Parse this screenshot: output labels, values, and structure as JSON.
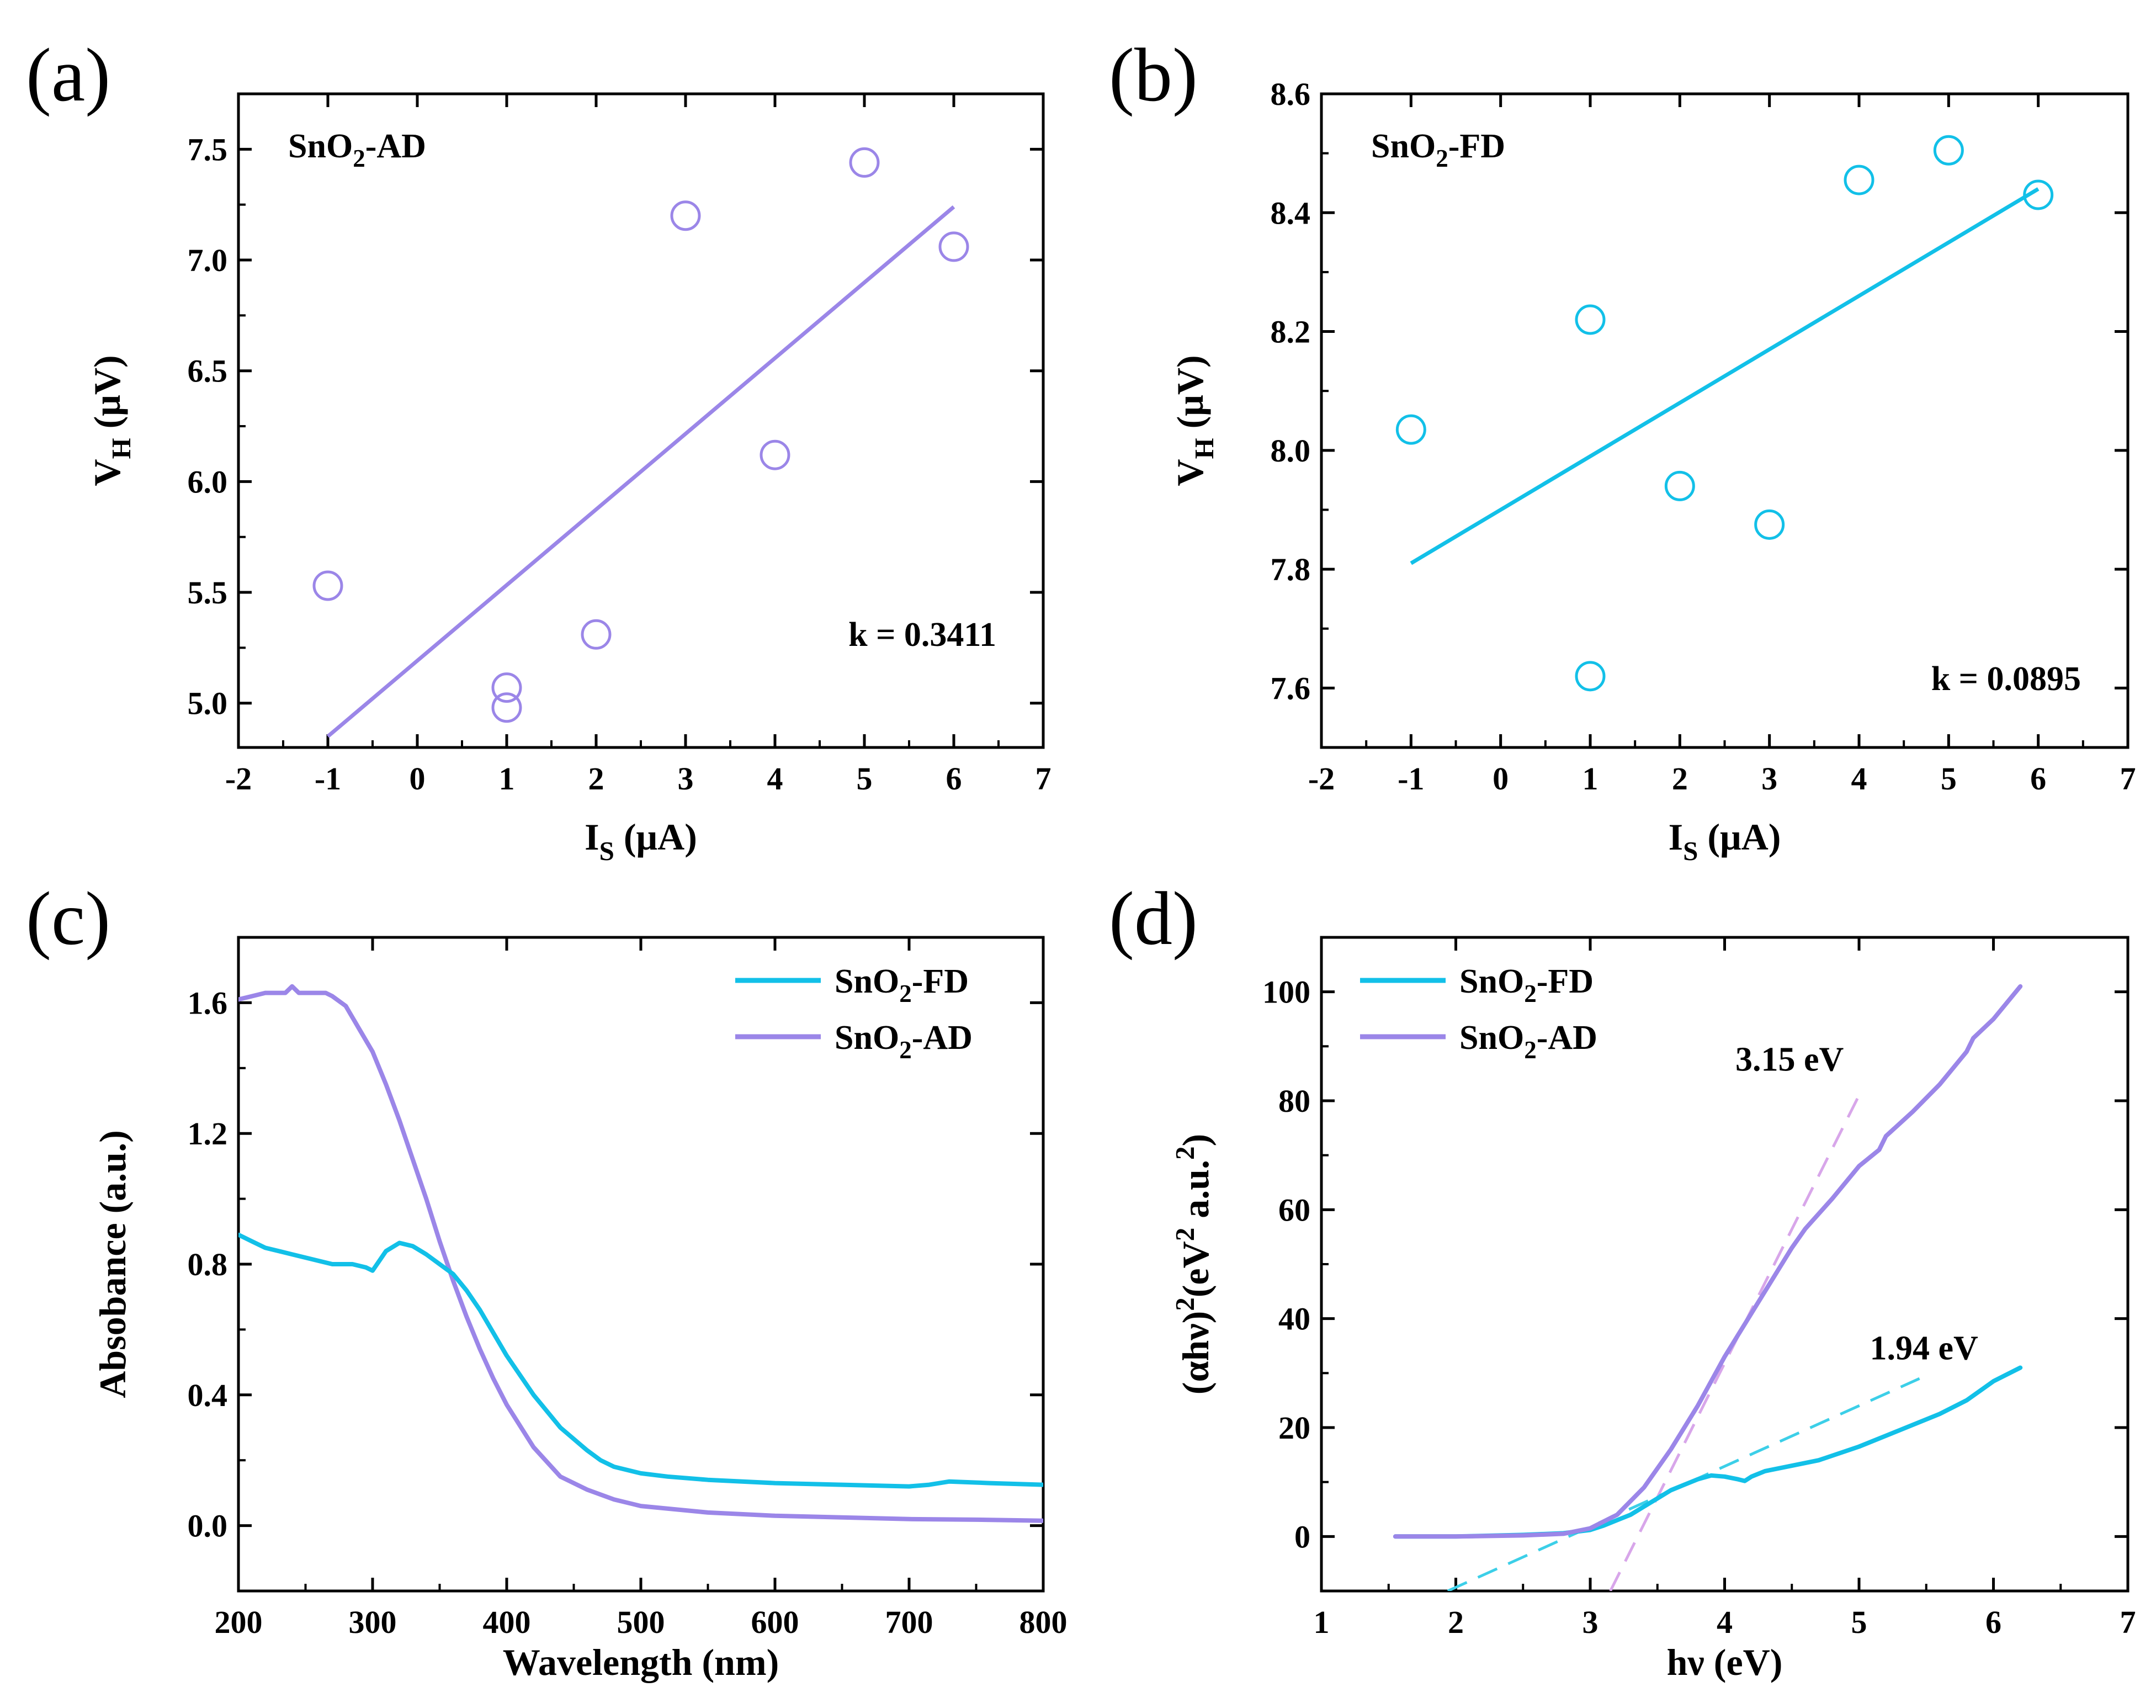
{
  "colors": {
    "ad": "#9b86e8",
    "fd": "#12c0e8",
    "ad_dash": "#d8a6ea",
    "fd_dash": "#3ccfe8"
  },
  "chart_data": [
    {
      "id": "a",
      "type": "scatter",
      "panel_label": "(a)",
      "title": "SnO2-AD",
      "sample": {
        "name": "SnO",
        "sub": "2",
        "rest": "-AD"
      },
      "xlabel": {
        "main": "I",
        "sub": "S",
        "rest": " (μA)"
      },
      "ylabel": {
        "main": "V",
        "sub": "H",
        "rest": " (μV)"
      },
      "xlim": [
        -2,
        7
      ],
      "ylim": [
        4.8,
        7.75
      ],
      "xticks": [
        "-2",
        "-1",
        "0",
        "1",
        "2",
        "3",
        "4",
        "5",
        "6",
        "7"
      ],
      "yticks": [
        "5.0",
        "5.5",
        "6.0",
        "6.5",
        "7.0",
        "7.5"
      ],
      "points": [
        [
          -1,
          5.53
        ],
        [
          1,
          5.07
        ],
        [
          1,
          4.98
        ],
        [
          2,
          5.31
        ],
        [
          3,
          7.2
        ],
        [
          4,
          6.12
        ],
        [
          5,
          7.44
        ],
        [
          6,
          7.06
        ]
      ],
      "fit": [
        [
          -1,
          4.85
        ],
        [
          6,
          7.24
        ]
      ],
      "annotation": "k = 0.3411",
      "color": "#9b86e8"
    },
    {
      "id": "b",
      "type": "scatter",
      "panel_label": "(b)",
      "title": "SnO2-FD",
      "sample": {
        "name": "SnO",
        "sub": "2",
        "rest": "-FD"
      },
      "xlabel": {
        "main": "I",
        "sub": "S",
        "rest": " (μA)"
      },
      "ylabel": {
        "main": "V",
        "sub": "H",
        "rest": " (μV)"
      },
      "xlim": [
        -2,
        7
      ],
      "ylim": [
        7.5,
        8.6
      ],
      "xticks": [
        "-2",
        "-1",
        "0",
        "1",
        "2",
        "3",
        "4",
        "5",
        "6",
        "7"
      ],
      "yticks": [
        "7.6",
        "7.8",
        "8.0",
        "8.2",
        "8.4",
        "8.6"
      ],
      "points": [
        [
          -1,
          8.035
        ],
        [
          1,
          8.22
        ],
        [
          1,
          7.62
        ],
        [
          2,
          7.94
        ],
        [
          3,
          7.875
        ],
        [
          4,
          8.455
        ],
        [
          5,
          8.505
        ],
        [
          6,
          8.43
        ]
      ],
      "fit": [
        [
          -1,
          7.81
        ],
        [
          6,
          8.44
        ]
      ],
      "annotation": "k = 0.0895",
      "color": "#12c0e8"
    },
    {
      "id": "c",
      "type": "line",
      "panel_label": "(c)",
      "xlabel": "Wavelength (nm)",
      "ylabel": "Absobance (a.u.)",
      "xlim": [
        200,
        800
      ],
      "ylim": [
        -0.2,
        1.8
      ],
      "xticks": [
        "200",
        "300",
        "400",
        "500",
        "600",
        "700",
        "800"
      ],
      "yticks": [
        "0.0",
        "0.4",
        "0.8",
        "1.2",
        "1.6"
      ],
      "series": [
        {
          "name": "SnO2-FD",
          "label": {
            "name": "SnO",
            "sub": "2",
            "rest": "-FD"
          },
          "color": "#12c0e8",
          "x": [
            200,
            210,
            220,
            240,
            260,
            270,
            285,
            295,
            300,
            310,
            320,
            330,
            340,
            350,
            360,
            370,
            380,
            400,
            420,
            440,
            460,
            470,
            480,
            500,
            520,
            550,
            600,
            650,
            700,
            715,
            730,
            760,
            800
          ],
          "y": [
            0.89,
            0.87,
            0.85,
            0.83,
            0.81,
            0.8,
            0.8,
            0.79,
            0.78,
            0.84,
            0.865,
            0.855,
            0.83,
            0.8,
            0.77,
            0.72,
            0.66,
            0.52,
            0.4,
            0.3,
            0.23,
            0.2,
            0.18,
            0.16,
            0.15,
            0.14,
            0.13,
            0.125,
            0.12,
            0.125,
            0.135,
            0.13,
            0.125
          ]
        },
        {
          "name": "SnO2-AD",
          "label": {
            "name": "SnO",
            "sub": "2",
            "rest": "-AD"
          },
          "color": "#9b86e8",
          "x": [
            200,
            210,
            220,
            235,
            240,
            245,
            255,
            265,
            270,
            280,
            290,
            300,
            310,
            320,
            330,
            340,
            350,
            360,
            370,
            380,
            390,
            400,
            420,
            440,
            460,
            480,
            500,
            550,
            600,
            650,
            700,
            750,
            800
          ],
          "y": [
            1.61,
            1.62,
            1.63,
            1.63,
            1.65,
            1.63,
            1.63,
            1.63,
            1.62,
            1.59,
            1.52,
            1.45,
            1.35,
            1.24,
            1.12,
            1.0,
            0.87,
            0.75,
            0.64,
            0.54,
            0.45,
            0.37,
            0.24,
            0.15,
            0.11,
            0.08,
            0.06,
            0.04,
            0.03,
            0.025,
            0.02,
            0.018,
            0.015
          ]
        }
      ]
    },
    {
      "id": "d",
      "type": "line",
      "panel_label": "(d)",
      "xlabel": "hν (eV)",
      "ylabel": {
        "pre": "(αhν)",
        "sup1": "2",
        "mid": "(eV",
        "sup2": "2",
        "mid2": " a.u.",
        "sup3": "2",
        "post": ")"
      },
      "xlim": [
        1,
        7
      ],
      "ylim": [
        -10,
        110
      ],
      "xticks": [
        "1",
        "2",
        "3",
        "4",
        "5",
        "6",
        "7"
      ],
      "yticks": [
        "0",
        "20",
        "40",
        "60",
        "80",
        "100"
      ],
      "series": [
        {
          "name": "SnO2-FD",
          "label": {
            "name": "SnO",
            "sub": "2",
            "rest": "-FD"
          },
          "color": "#12c0e8",
          "x": [
            1.55,
            2.0,
            2.5,
            2.8,
            3.0,
            3.1,
            3.2,
            3.3,
            3.4,
            3.5,
            3.6,
            3.7,
            3.8,
            3.9,
            4.0,
            4.1,
            4.15,
            4.2,
            4.3,
            4.5,
            4.7,
            5.0,
            5.3,
            5.6,
            5.8,
            6.0,
            6.2
          ],
          "y": [
            0,
            0,
            0.3,
            0.6,
            1.2,
            2.0,
            3.0,
            4.0,
            5.5,
            7.0,
            8.5,
            9.5,
            10.5,
            11.2,
            11.0,
            10.5,
            10.2,
            11.0,
            12.0,
            13.0,
            14.0,
            16.5,
            19.5,
            22.5,
            25.0,
            28.5,
            31.0
          ]
        },
        {
          "name": "SnO2-AD",
          "label": {
            "name": "SnO",
            "sub": "2",
            "rest": "-AD"
          },
          "color": "#9b86e8",
          "x": [
            1.55,
            2.0,
            2.5,
            2.8,
            3.0,
            3.2,
            3.4,
            3.6,
            3.8,
            4.0,
            4.2,
            4.4,
            4.5,
            4.6,
            4.8,
            5.0,
            5.15,
            5.2,
            5.4,
            5.6,
            5.8,
            5.85,
            6.0,
            6.2
          ],
          "y": [
            0,
            0,
            0.2,
            0.5,
            1.5,
            4.0,
            9.0,
            16.0,
            24.0,
            33.0,
            41.0,
            49.0,
            53.0,
            56.5,
            62.0,
            68.0,
            71.0,
            73.5,
            78.0,
            83.0,
            89.0,
            91.5,
            95.0,
            101.0
          ]
        }
      ],
      "fits": [
        {
          "series": "SnO2-AD",
          "x": [
            3.15,
            5.0
          ],
          "y": [
            -10,
            81
          ],
          "label": "3.15 eV",
          "color": "#d8a6ea"
        },
        {
          "series": "SnO2-FD",
          "x": [
            1.94,
            5.45
          ],
          "y": [
            -10,
            29
          ],
          "label": "1.94 eV",
          "color": "#3ccfe8"
        }
      ]
    }
  ]
}
